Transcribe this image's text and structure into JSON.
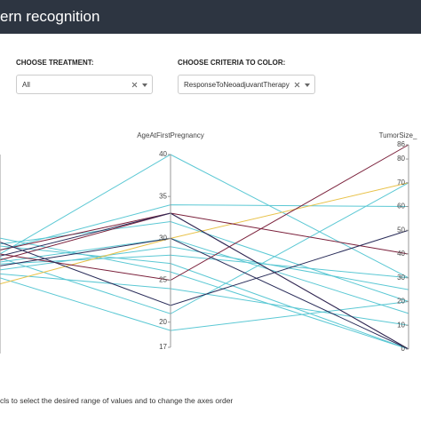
{
  "header": {
    "title": "ern recognition"
  },
  "controls": [
    {
      "label": "CHOOSE TREATMENT:",
      "value": "All"
    },
    {
      "label": "CHOOSE CRITERIA TO COLOR:",
      "value": "ResponseToNeoadjuvantTherapy"
    }
  ],
  "chart_data": {
    "type": "parallel",
    "axes": [
      {
        "name": null,
        "ylim": [
          0,
          100
        ]
      },
      {
        "name": "AgeAtFirstPregnancy",
        "ylim": [
          17,
          40
        ],
        "yticks": [
          17,
          20,
          25,
          30,
          35,
          40
        ]
      },
      {
        "name": "TumorSize_",
        "ylim": [
          0,
          86
        ],
        "yticks": [
          0,
          10,
          20,
          30,
          40,
          50,
          60,
          70,
          80,
          86
        ]
      }
    ],
    "lines": [
      {
        "color": "#5bc8d4",
        "values": [
          50,
          40,
          30
        ]
      },
      {
        "color": "#5bc8d4",
        "values": [
          55,
          32,
          20
        ]
      },
      {
        "color": "#5bc8d4",
        "values": [
          45,
          28,
          30
        ]
      },
      {
        "color": "#5bc8d4",
        "values": [
          40,
          24,
          10
        ]
      },
      {
        "color": "#5bc8d4",
        "values": [
          48,
          21,
          70
        ]
      },
      {
        "color": "#5bc8d4",
        "values": [
          58,
          26,
          0
        ]
      },
      {
        "color": "#5bc8d4",
        "values": [
          42,
          29,
          25
        ]
      },
      {
        "color": "#5bc8d4",
        "values": [
          52,
          34,
          60
        ]
      },
      {
        "color": "#5bc8d4",
        "values": [
          38,
          19,
          20
        ]
      },
      {
        "color": "#5bc8d4",
        "values": [
          46,
          30,
          15
        ]
      },
      {
        "color": "#5bc8d4",
        "values": [
          54,
          27,
          0
        ]
      },
      {
        "color": "#e8c24a",
        "values": [
          35,
          30,
          70
        ]
      },
      {
        "color": "#7a1f3a",
        "values": [
          50,
          25,
          86
        ]
      },
      {
        "color": "#7a1f3a",
        "values": [
          52,
          33,
          40
        ]
      },
      {
        "color": "#7a1f3a",
        "values": [
          47,
          33,
          0
        ]
      },
      {
        "color": "#2a2d5a",
        "values": [
          56,
          22,
          50
        ]
      },
      {
        "color": "#2a2d5a",
        "values": [
          49,
          33,
          0
        ]
      },
      {
        "color": "#2a2d5a",
        "values": [
          44,
          30,
          0
        ]
      }
    ]
  },
  "footer": {
    "text": "cls to select the desired range of values and to change the axes order"
  }
}
